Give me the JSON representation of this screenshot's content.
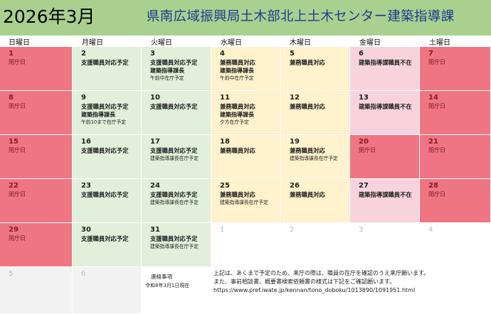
{
  "header": {
    "month": "2026年3月",
    "org": "県南広域振興局土木部北上土木センター建築指導課"
  },
  "weekdays": [
    "日曜日",
    "月曜日",
    "火曜日",
    "水曜日",
    "木曜日",
    "金曜日",
    "土曜日"
  ],
  "colors": {
    "header_bg": "#a9d08e",
    "holiday": "#ef7582",
    "support": "#e2efda",
    "concurrent": "#fff2cc",
    "absent": "#f8d3dd",
    "blank": "#ffffff",
    "grey": "#f2f2f2"
  },
  "weeks": [
    [
      {
        "day": "1",
        "lines": [
          "閉庁日"
        ],
        "kind": "holiday"
      },
      {
        "day": "2",
        "lines": [
          "支援職員対応予定"
        ],
        "kind": "support"
      },
      {
        "day": "3",
        "lines": [
          "支援職員対応予定",
          "建築指導課長",
          "午前中在庁予定"
        ],
        "kind": "support"
      },
      {
        "day": "4",
        "lines": [
          "兼務職員対応",
          "建築指導課長",
          "午前中在庁予定"
        ],
        "kind": "concurrent"
      },
      {
        "day": "5",
        "lines": [
          "兼務職員対応"
        ],
        "kind": "concurrent"
      },
      {
        "day": "6",
        "lines": [
          "建築指導課職員不在"
        ],
        "kind": "absent"
      },
      {
        "day": "7",
        "lines": [
          "閉庁日"
        ],
        "kind": "holiday"
      }
    ],
    [
      {
        "day": "8",
        "lines": [
          "閉庁日"
        ],
        "kind": "holiday"
      },
      {
        "day": "9",
        "lines": [
          "支援職員対応予定",
          "建築指導課長",
          "午前10まで在庁予定"
        ],
        "kind": "support"
      },
      {
        "day": "10",
        "lines": [
          "支援職員対応予定"
        ],
        "kind": "support"
      },
      {
        "day": "11",
        "lines": [
          "兼務職員対応",
          "建築指導課長",
          "夕方在庁予定"
        ],
        "kind": "concurrent"
      },
      {
        "day": "12",
        "lines": [
          "兼務職員対応"
        ],
        "kind": "concurrent"
      },
      {
        "day": "13",
        "lines": [
          "建築指導課職員不在"
        ],
        "kind": "absent"
      },
      {
        "day": "14",
        "lines": [
          "閉庁日"
        ],
        "kind": "holiday"
      }
    ],
    [
      {
        "day": "15",
        "lines": [
          "閉庁日"
        ],
        "kind": "holiday"
      },
      {
        "day": "16",
        "lines": [
          "支援職員対応予定"
        ],
        "kind": "support"
      },
      {
        "day": "17",
        "lines": [
          "支援職員対応予定",
          "建築指導課長在庁予定"
        ],
        "kind": "support"
      },
      {
        "day": "18",
        "lines": [
          "兼務職員対応"
        ],
        "kind": "concurrent"
      },
      {
        "day": "19",
        "lines": [
          "兼務職員対応",
          "建築指導課長在庁予定"
        ],
        "kind": "concurrent"
      },
      {
        "day": "20",
        "lines": [
          "閉庁日"
        ],
        "kind": "holiday"
      },
      {
        "day": "21",
        "lines": [
          "閉庁日"
        ],
        "kind": "holiday"
      }
    ],
    [
      {
        "day": "22",
        "lines": [
          "閉庁日"
        ],
        "kind": "holiday"
      },
      {
        "day": "23",
        "lines": [
          "支援職員対応予定"
        ],
        "kind": "support"
      },
      {
        "day": "24",
        "lines": [
          "支援職員対応予定",
          "建築指導課長在庁予定"
        ],
        "kind": "support"
      },
      {
        "day": "25",
        "lines": [
          "兼務職員対応",
          "建築指導課長在庁予定"
        ],
        "kind": "concurrent"
      },
      {
        "day": "26",
        "lines": [
          "兼務職員対応"
        ],
        "kind": "concurrent"
      },
      {
        "day": "27",
        "lines": [
          "建築指導課職員不在"
        ],
        "kind": "absent"
      },
      {
        "day": "28",
        "lines": [
          "閉庁日"
        ],
        "kind": "holiday"
      }
    ],
    [
      {
        "day": "29",
        "lines": [
          "閉庁日"
        ],
        "kind": "holiday"
      },
      {
        "day": "30",
        "lines": [
          "支援職員対応予定"
        ],
        "kind": "support"
      },
      {
        "day": "31",
        "lines": [
          "支援職員対応予定",
          "建築指導課長在庁予定"
        ],
        "kind": "support"
      },
      {
        "day": "1",
        "lines": [],
        "kind": "blank"
      },
      {
        "day": "2",
        "lines": [],
        "kind": "blank"
      },
      {
        "day": "3",
        "lines": [],
        "kind": "blank"
      },
      {
        "day": "4",
        "lines": [],
        "kind": "blank"
      }
    ],
    [
      {
        "day": "5",
        "lines": [],
        "kind": "grey"
      },
      {
        "day": "6",
        "lines": [],
        "kind": "grey"
      }
    ]
  ],
  "notes": {
    "title": "連絡事項",
    "date": "令和8年3月1日現在",
    "lines": [
      "上記は、あくまで予定のため、来庁の際は、職員の在庁を確認のうえ来庁願います。",
      "また、事前相談書、概要書検索依頼書の様式は下記をご確認願います。",
      "https://www.pref.iwate.jp/kennan/tono_doboku/1013890/1091951.html"
    ]
  }
}
